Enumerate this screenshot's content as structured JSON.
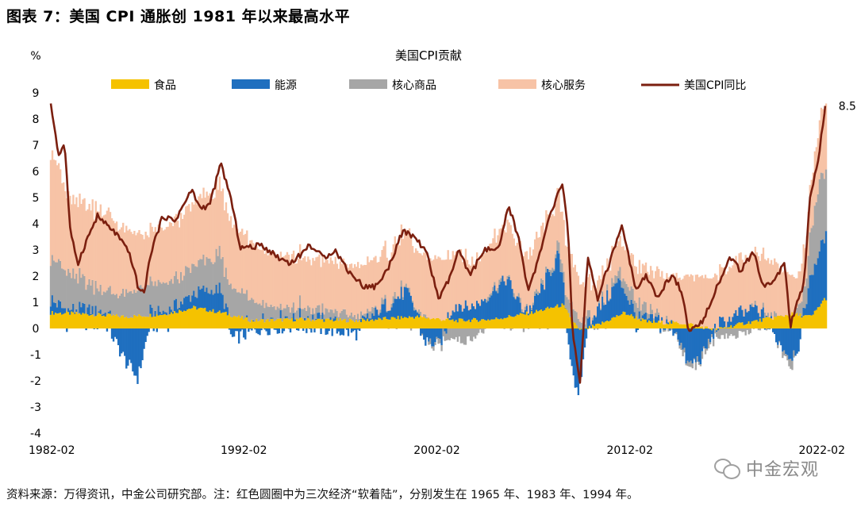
{
  "figure_title": "图表 7：美国 CPI 通胀创 1981 年以来最高水平",
  "footnote": "资料来源：万得资讯，中金公司研究部。注：红色圆圈中为三次经济“软着陆”，分别发生在 1965 年、1983 年、1994 年。",
  "watermark": "中金宏观",
  "watermark_icon": "wechat-icon",
  "colors": {
    "food": "#F5C200",
    "energy": "#1F6FBF",
    "core_goods": "#A6A6A6",
    "core_services": "#F7C3A6",
    "cpi_line": "#7B1F0F"
  },
  "chart_data": {
    "type": "bar",
    "subtype": "stacked-bar-with-line",
    "title": "美国CPI贡献",
    "ylabel": "%",
    "ylim": [
      -4,
      9
    ],
    "yticks": [
      -4,
      -3,
      -2,
      -1,
      0,
      1,
      2,
      3,
      4,
      5,
      6,
      7,
      8,
      9
    ],
    "xlim": [
      "1982-02",
      "2022-02"
    ],
    "xticks": [
      "1982-02",
      "1992-02",
      "2002-02",
      "2012-02",
      "2022-02"
    ],
    "legend_position": "top",
    "last_value_label": "8.5",
    "series": [
      {
        "name": "食品",
        "kind": "bar",
        "points": [
          [
            1982.1,
            0.6
          ],
          [
            1984,
            0.55
          ],
          [
            1986,
            0.45
          ],
          [
            1988,
            0.55
          ],
          [
            1989.5,
            0.8
          ],
          [
            1991,
            0.6
          ],
          [
            1992.5,
            0.3
          ],
          [
            1995,
            0.35
          ],
          [
            1998,
            0.3
          ],
          [
            2001,
            0.45
          ],
          [
            2003,
            0.3
          ],
          [
            2005,
            0.35
          ],
          [
            2007,
            0.6
          ],
          [
            2008.6,
            0.9
          ],
          [
            2009.5,
            -0.1
          ],
          [
            2010.5,
            0.15
          ],
          [
            2011.8,
            0.6
          ],
          [
            2013,
            0.25
          ],
          [
            2015,
            0.2
          ],
          [
            2016.5,
            -0.05
          ],
          [
            2018,
            0.2
          ],
          [
            2020.5,
            0.55
          ],
          [
            2021.5,
            0.45
          ],
          [
            2022.2,
            1.15
          ]
        ]
      },
      {
        "name": "能源",
        "kind": "bar",
        "points": [
          [
            1982.1,
            0.5
          ],
          [
            1983,
            0.1
          ],
          [
            1984,
            0.2
          ],
          [
            1985,
            0.1
          ],
          [
            1986,
            -1.3
          ],
          [
            1986.6,
            -1.9
          ],
          [
            1987.2,
            0.1
          ],
          [
            1988,
            0.1
          ],
          [
            1990.8,
            0.9
          ],
          [
            1991.5,
            -0.4
          ],
          [
            1993,
            0.0
          ],
          [
            1995,
            0.1
          ],
          [
            1998,
            -0.2
          ],
          [
            1999.5,
            0.5
          ],
          [
            2000.5,
            1.0
          ],
          [
            2001.5,
            -0.5
          ],
          [
            2002.2,
            -0.6
          ],
          [
            2003,
            0.6
          ],
          [
            2004,
            0.5
          ],
          [
            2005.7,
            1.5
          ],
          [
            2006.5,
            0.2
          ],
          [
            2007,
            0.2
          ],
          [
            2008.4,
            1.9
          ],
          [
            2008.9,
            -0.5
          ],
          [
            2009.4,
            -2.8
          ],
          [
            2009.9,
            0.2
          ],
          [
            2010.5,
            0.6
          ],
          [
            2011.5,
            1.3
          ],
          [
            2012.5,
            0.0
          ],
          [
            2013.5,
            0.1
          ],
          [
            2014.5,
            -0.1
          ],
          [
            2015.1,
            -1.4
          ],
          [
            2015.8,
            -1.1
          ],
          [
            2016.6,
            0.1
          ],
          [
            2017.2,
            0.3
          ],
          [
            2018.5,
            0.5
          ],
          [
            2019.3,
            0.0
          ],
          [
            2020.4,
            -1.1
          ],
          [
            2020.9,
            -0.6
          ],
          [
            2021.5,
            1.6
          ],
          [
            2022.2,
            2.4
          ]
        ]
      },
      {
        "name": "核心商品",
        "kind": "bar",
        "points": [
          [
            1982.1,
            1.7
          ],
          [
            1984,
            1.0
          ],
          [
            1985.5,
            0.8
          ],
          [
            1987,
            1.1
          ],
          [
            1989,
            1.0
          ],
          [
            1991,
            1.3
          ],
          [
            1992.5,
            0.8
          ],
          [
            1994,
            0.4
          ],
          [
            1996,
            0.3
          ],
          [
            1998,
            0.2
          ],
          [
            2000,
            0.1
          ],
          [
            2001.5,
            0.0
          ],
          [
            2002.5,
            -0.3
          ],
          [
            2003.5,
            -0.5
          ],
          [
            2005,
            0.1
          ],
          [
            2007,
            0.0
          ],
          [
            2008,
            0.1
          ],
          [
            2009,
            0.6
          ],
          [
            2010.5,
            0.0
          ],
          [
            2012,
            0.5
          ],
          [
            2013,
            0.3
          ],
          [
            2014.5,
            -0.1
          ],
          [
            2016,
            -0.2
          ],
          [
            2017.5,
            -0.3
          ],
          [
            2018.5,
            0.0
          ],
          [
            2019.5,
            0.1
          ],
          [
            2020.5,
            -0.3
          ],
          [
            2021.2,
            1.0
          ],
          [
            2021.9,
            2.7
          ],
          [
            2022.2,
            2.4
          ]
        ]
      },
      {
        "name": "核心服务",
        "kind": "bar",
        "points": [
          [
            1982.1,
            4.1
          ],
          [
            1983,
            2.9
          ],
          [
            1985,
            3.0
          ],
          [
            1987,
            1.9
          ],
          [
            1989,
            2.3
          ],
          [
            1991,
            2.6
          ],
          [
            1993,
            2.0
          ],
          [
            1995,
            1.9
          ],
          [
            1997,
            1.9
          ],
          [
            1999,
            1.9
          ],
          [
            2001,
            2.2
          ],
          [
            2002.5,
            2.4
          ],
          [
            2004,
            1.7
          ],
          [
            2006,
            2.1
          ],
          [
            2007.5,
            2.1
          ],
          [
            2009,
            1.8
          ],
          [
            2010.5,
            1.0
          ],
          [
            2012,
            1.3
          ],
          [
            2014,
            1.7
          ],
          [
            2016,
            1.9
          ],
          [
            2018,
            2.0
          ],
          [
            2019.5,
            2.1
          ],
          [
            2020.8,
            1.2
          ],
          [
            2022.2,
            2.6
          ]
        ]
      },
      {
        "name": "美国CPI同比",
        "kind": "line",
        "points": [
          [
            1982.1,
            8.5
          ],
          [
            1982.5,
            6.6
          ],
          [
            1982.8,
            7.1
          ],
          [
            1983.1,
            3.6
          ],
          [
            1983.5,
            2.5
          ],
          [
            1983.9,
            3.3
          ],
          [
            1984.5,
            4.3
          ],
          [
            1984.9,
            4.0
          ],
          [
            1985.5,
            3.6
          ],
          [
            1986.2,
            2.8
          ],
          [
            1986.6,
            1.6
          ],
          [
            1986.9,
            1.3
          ],
          [
            1987.3,
            3.0
          ],
          [
            1987.9,
            4.3
          ],
          [
            1988.5,
            4.1
          ],
          [
            1989.4,
            5.3
          ],
          [
            1989.8,
            4.6
          ],
          [
            1990.3,
            4.7
          ],
          [
            1990.9,
            6.3
          ],
          [
            1991.4,
            5.0
          ],
          [
            1991.9,
            3.1
          ],
          [
            1992.5,
            3.1
          ],
          [
            1993,
            3.2
          ],
          [
            1993.9,
            2.7
          ],
          [
            1994.5,
            2.5
          ],
          [
            1995,
            2.8
          ],
          [
            1995.5,
            3.2
          ],
          [
            1996.2,
            2.7
          ],
          [
            1996.8,
            3.0
          ],
          [
            1997.5,
            2.2
          ],
          [
            1998.3,
            1.6
          ],
          [
            1998.9,
            1.6
          ],
          [
            1999.5,
            2.2
          ],
          [
            2000.3,
            3.7
          ],
          [
            2000.9,
            3.5
          ],
          [
            2001.5,
            3.0
          ],
          [
            2002.2,
            1.1
          ],
          [
            2002.8,
            2.0
          ],
          [
            2003.2,
            3.0
          ],
          [
            2003.8,
            2.0
          ],
          [
            2004.5,
            3.0
          ],
          [
            2005.3,
            3.0
          ],
          [
            2005.8,
            4.7
          ],
          [
            2006.3,
            3.5
          ],
          [
            2006.8,
            1.5
          ],
          [
            2007.3,
            2.5
          ],
          [
            2007.9,
            4.2
          ],
          [
            2008.6,
            5.6
          ],
          [
            2008.9,
            3.5
          ],
          [
            2009.1,
            0.0
          ],
          [
            2009.5,
            -2.1
          ],
          [
            2009.9,
            2.7
          ],
          [
            2010.4,
            1.1
          ],
          [
            2011.2,
            2.9
          ],
          [
            2011.7,
            3.9
          ],
          [
            2012.4,
            1.4
          ],
          [
            2012.9,
            2.0
          ],
          [
            2013.5,
            1.2
          ],
          [
            2014.3,
            2.1
          ],
          [
            2014.8,
            1.3
          ],
          [
            2015.1,
            -0.1
          ],
          [
            2015.8,
            0.2
          ],
          [
            2016.3,
            1.1
          ],
          [
            2016.9,
            2.1
          ],
          [
            2017.3,
            2.7
          ],
          [
            2017.8,
            2.2
          ],
          [
            2018.5,
            2.9
          ],
          [
            2019,
            1.6
          ],
          [
            2019.5,
            1.8
          ],
          [
            2020.1,
            2.5
          ],
          [
            2020.4,
            0.1
          ],
          [
            2020.9,
            1.3
          ],
          [
            2021.1,
            1.7
          ],
          [
            2021.4,
            5.0
          ],
          [
            2021.8,
            6.2
          ],
          [
            2022.2,
            8.5
          ]
        ]
      }
    ]
  }
}
